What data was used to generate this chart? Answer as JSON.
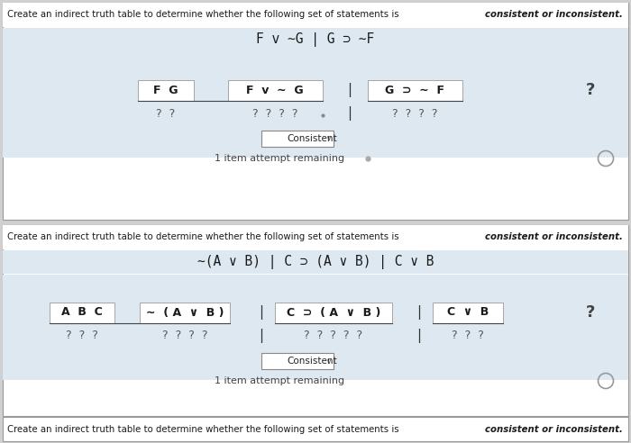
{
  "bg_outer": "#d0d0d0",
  "bg_white": "#ffffff",
  "bg_light_blue": "#dde8f0",
  "bg_header_white": "#f5f5f5",
  "border_color": "#999999",
  "text_dark": "#1a1a1a",
  "text_gray": "#555555",
  "text_question": "#444444",
  "sec1_header": "Create an indirect truth table to determine whether the following set of statements is consistent or inconsistent.",
  "sec1_formula": "F v ∼G | G ⊃ ∼F",
  "sec1_fg_header": "F  G",
  "sec1_fvg_header": "F  v  ∼  G",
  "sec1_gsf_header": "G  ⊃  ∼  F",
  "sec1_fg_vals": "?  ?",
  "sec1_fvg_vals": "?  ?  ?  ?",
  "sec1_gsf_vals": "?  ?  ?  ?",
  "sec1_dropdown": "Consistent",
  "sec1_attempts": "1 item attempt remaining",
  "sec2_header": "Create an indirect truth table to determine whether the following set of statements is consistent or inconsistent.",
  "sec2_formula": "∼(A ∨ B) | C ⊃ (A ∨ B) | C ∨ B",
  "sec2_abc_header": "A  B  C",
  "sec2_navb_header": "∼  ( A  ∨  B )",
  "sec2_csavb_header": "C  ⊃  ( A  ∨  B )",
  "sec2_cvb_header": "C  ∨  B",
  "sec2_abc_vals": "?  ?  ?",
  "sec2_navb_vals": "?  ?  ?  ?",
  "sec2_csavb_vals": "?  ?  ?  ?  ?",
  "sec2_cvb_vals": "?  ?  ?",
  "sec2_dropdown": "Consistent",
  "sec2_attempts": "1 item attempt remaining",
  "sec3_header": "Create an indirect truth table to determine whether the following set of statements is consistent or inconsistent."
}
